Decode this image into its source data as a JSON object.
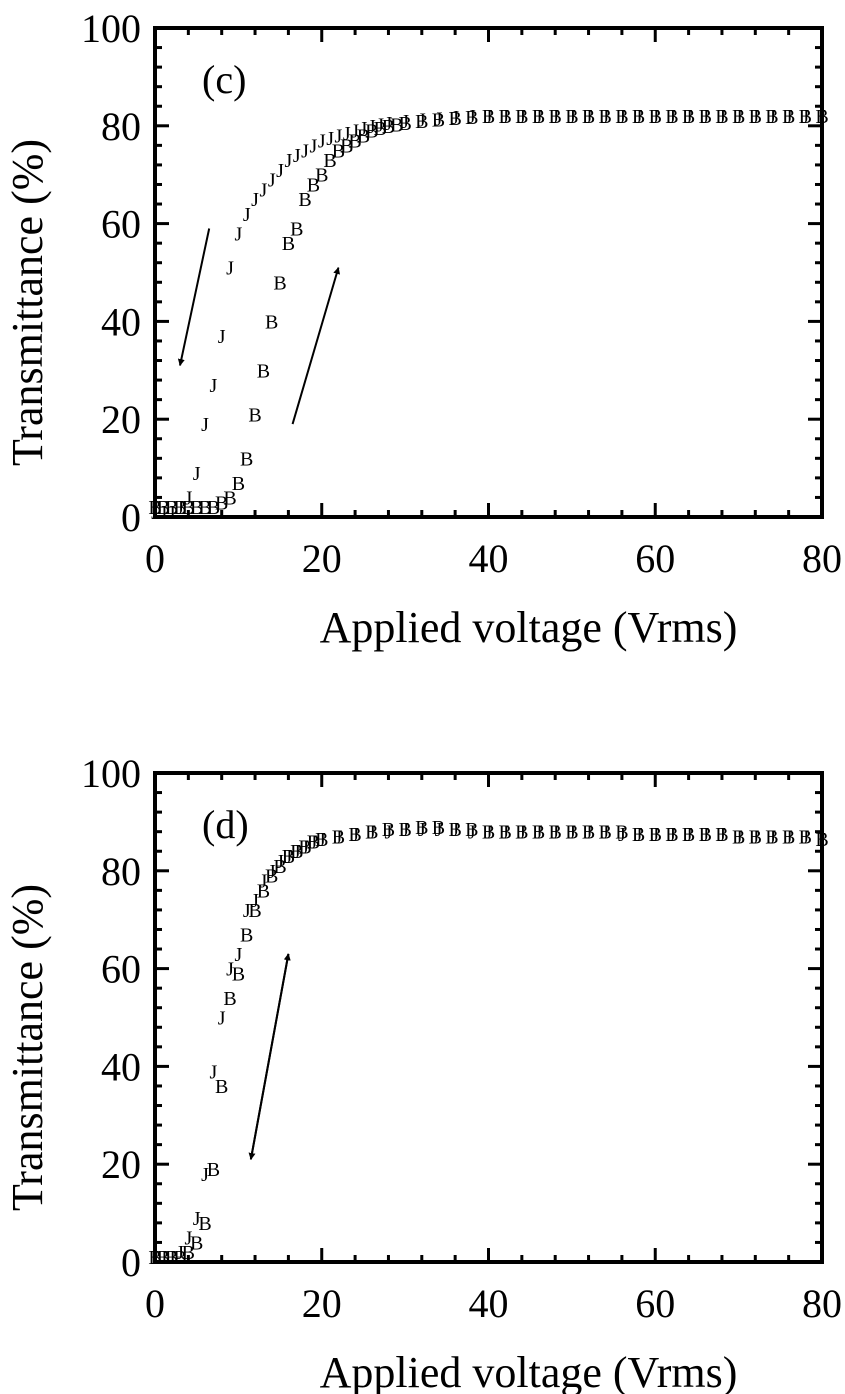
{
  "chart_data": [
    {
      "type": "scatter",
      "panel_label": "(c)",
      "xlabel": "Applied voltage (Vrms)",
      "ylabel": "Transmittance (%)",
      "xlim": [
        0,
        80
      ],
      "ylim": [
        0,
        100
      ],
      "xticks": [
        "0",
        "20",
        "40",
        "60",
        "80"
      ],
      "yticks": [
        "0",
        "20",
        "40",
        "60",
        "80",
        "100"
      ],
      "grid": false,
      "series": [
        {
          "marker": "J",
          "points": [
            [
              0,
              1
            ],
            [
              1,
              1
            ],
            [
              2,
              1
            ],
            [
              3,
              2
            ],
            [
              4,
              4
            ],
            [
              5,
              9
            ],
            [
              6,
              19
            ],
            [
              7,
              27
            ],
            [
              8,
              37
            ],
            [
              9,
              51
            ],
            [
              10,
              58
            ],
            [
              11,
              62
            ],
            [
              12,
              65
            ],
            [
              13,
              67
            ],
            [
              14,
              69
            ],
            [
              15,
              71
            ],
            [
              16,
              73
            ],
            [
              17,
              74
            ],
            [
              18,
              75
            ],
            [
              19,
              76
            ],
            [
              20,
              77
            ],
            [
              21,
              77.5
            ],
            [
              22,
              78
            ],
            [
              23,
              78.5
            ],
            [
              24,
              79
            ],
            [
              25,
              79.5
            ],
            [
              26,
              80
            ],
            [
              27,
              80.3
            ],
            [
              28,
              80.6
            ],
            [
              30,
              81
            ],
            [
              32,
              81.3
            ],
            [
              34,
              81.5
            ],
            [
              36,
              81.8
            ],
            [
              38,
              82
            ],
            [
              40,
              82
            ],
            [
              42,
              82
            ],
            [
              44,
              82
            ],
            [
              46,
              82
            ],
            [
              48,
              82
            ],
            [
              50,
              82
            ],
            [
              52,
              82
            ],
            [
              54,
              82
            ],
            [
              56,
              82
            ],
            [
              58,
              82
            ],
            [
              60,
              82
            ],
            [
              62,
              82
            ],
            [
              64,
              82
            ],
            [
              66,
              82
            ],
            [
              68,
              82
            ],
            [
              70,
              82
            ],
            [
              72,
              82
            ],
            [
              74,
              82
            ],
            [
              76,
              82
            ],
            [
              78,
              82
            ],
            [
              80,
              82
            ]
          ]
        },
        {
          "marker": "B",
          "points": [
            [
              0,
              2
            ],
            [
              1,
              2
            ],
            [
              2,
              2
            ],
            [
              3,
              2
            ],
            [
              4,
              2
            ],
            [
              5,
              2
            ],
            [
              6,
              2
            ],
            [
              7,
              2
            ],
            [
              8,
              3
            ],
            [
              9,
              4
            ],
            [
              10,
              7
            ],
            [
              11,
              12
            ],
            [
              12,
              21
            ],
            [
              13,
              30
            ],
            [
              14,
              40
            ],
            [
              15,
              48
            ],
            [
              16,
              56
            ],
            [
              17,
              59
            ],
            [
              18,
              65
            ],
            [
              19,
              68
            ],
            [
              20,
              70
            ],
            [
              21,
              73
            ],
            [
              22,
              75
            ],
            [
              23,
              76
            ],
            [
              24,
              77
            ],
            [
              25,
              78
            ],
            [
              26,
              79
            ],
            [
              27,
              79.5
            ],
            [
              28,
              80
            ],
            [
              29,
              80.3
            ],
            [
              30,
              80.6
            ],
            [
              32,
              81
            ],
            [
              34,
              81.3
            ],
            [
              36,
              81.6
            ],
            [
              38,
              81.8
            ],
            [
              40,
              82
            ],
            [
              42,
              82
            ],
            [
              44,
              82
            ],
            [
              46,
              82
            ],
            [
              48,
              82
            ],
            [
              50,
              82
            ],
            [
              52,
              82
            ],
            [
              54,
              82
            ],
            [
              56,
              82
            ],
            [
              58,
              82
            ],
            [
              60,
              82
            ],
            [
              62,
              82
            ],
            [
              64,
              82
            ],
            [
              66,
              82
            ],
            [
              68,
              82
            ],
            [
              70,
              82
            ],
            [
              72,
              82
            ],
            [
              74,
              82
            ],
            [
              76,
              82
            ],
            [
              78,
              82
            ],
            [
              80,
              82
            ]
          ]
        }
      ],
      "arrows": [
        {
          "from": [
            6.5,
            59
          ],
          "to": [
            3,
            31
          ]
        },
        {
          "from": [
            16.5,
            19
          ],
          "to": [
            22,
            51
          ]
        }
      ]
    },
    {
      "type": "scatter",
      "panel_label": "(d)",
      "xlabel": "Applied voltage (Vrms)",
      "ylabel": "Transmittance (%)",
      "xlim": [
        0,
        80
      ],
      "ylim": [
        0,
        100
      ],
      "xticks": [
        "0",
        "20",
        "40",
        "60",
        "80"
      ],
      "yticks": [
        "0",
        "20",
        "40",
        "60",
        "80",
        "100"
      ],
      "grid": false,
      "series": [
        {
          "marker": "J",
          "points": [
            [
              0,
              1
            ],
            [
              1,
              1
            ],
            [
              2,
              1
            ],
            [
              3,
              2
            ],
            [
              4,
              5
            ],
            [
              5,
              9
            ],
            [
              6,
              18
            ],
            [
              7,
              39
            ],
            [
              8,
              50
            ],
            [
              9,
              60
            ],
            [
              10,
              63
            ],
            [
              11,
              72
            ],
            [
              12,
              74
            ],
            [
              13,
              78
            ],
            [
              14,
              80
            ],
            [
              15,
              82
            ],
            [
              16,
              83
            ],
            [
              17,
              84
            ],
            [
              18,
              85
            ],
            [
              19,
              86
            ],
            [
              20,
              86.5
            ],
            [
              22,
              87
            ],
            [
              24,
              87.5
            ],
            [
              26,
              88
            ],
            [
              28,
              88
            ],
            [
              30,
              88.5
            ],
            [
              32,
              88.5
            ],
            [
              34,
              88.5
            ],
            [
              36,
              88.5
            ],
            [
              38,
              88
            ],
            [
              40,
              88
            ],
            [
              42,
              88
            ],
            [
              44,
              88
            ],
            [
              46,
              88
            ],
            [
              48,
              88
            ],
            [
              50,
              88
            ],
            [
              52,
              88
            ],
            [
              54,
              88
            ],
            [
              56,
              87.5
            ],
            [
              58,
              87.5
            ],
            [
              60,
              87.5
            ],
            [
              62,
              87.5
            ],
            [
              64,
              87.5
            ],
            [
              66,
              87.5
            ],
            [
              68,
              87.5
            ],
            [
              70,
              87
            ],
            [
              72,
              87
            ],
            [
              74,
              87
            ],
            [
              76,
              87
            ],
            [
              78,
              87
            ],
            [
              80,
              86.5
            ]
          ]
        },
        {
          "marker": "B",
          "points": [
            [
              0,
              1
            ],
            [
              1,
              1
            ],
            [
              2,
              1
            ],
            [
              3,
              1
            ],
            [
              4,
              2
            ],
            [
              5,
              4
            ],
            [
              6,
              8
            ],
            [
              7,
              19
            ],
            [
              8,
              36
            ],
            [
              9,
              54
            ],
            [
              10,
              59
            ],
            [
              11,
              67
            ],
            [
              12,
              72
            ],
            [
              13,
              76
            ],
            [
              14,
              79
            ],
            [
              15,
              81
            ],
            [
              16,
              83
            ],
            [
              17,
              84
            ],
            [
              18,
              85
            ],
            [
              19,
              86
            ],
            [
              20,
              86.5
            ],
            [
              22,
              87
            ],
            [
              24,
              87.5
            ],
            [
              26,
              88
            ],
            [
              28,
              88.5
            ],
            [
              30,
              88.5
            ],
            [
              32,
              89
            ],
            [
              34,
              89
            ],
            [
              36,
              88.5
            ],
            [
              38,
              88.5
            ],
            [
              40,
              88
            ],
            [
              42,
              88
            ],
            [
              44,
              88
            ],
            [
              46,
              88
            ],
            [
              48,
              88
            ],
            [
              50,
              88
            ],
            [
              52,
              88
            ],
            [
              54,
              88
            ],
            [
              56,
              88
            ],
            [
              58,
              87.5
            ],
            [
              60,
              87.5
            ],
            [
              62,
              87.5
            ],
            [
              64,
              87.5
            ],
            [
              66,
              87.5
            ],
            [
              68,
              87.5
            ],
            [
              70,
              87
            ],
            [
              72,
              87
            ],
            [
              74,
              87
            ],
            [
              76,
              87
            ],
            [
              78,
              87
            ],
            [
              80,
              86.5
            ]
          ]
        }
      ],
      "arrows": [
        {
          "from": [
            11.5,
            21
          ],
          "to": [
            16,
            63
          ]
        },
        {
          "from": [
            16,
            63
          ],
          "to": [
            11.5,
            21
          ]
        }
      ]
    }
  ]
}
